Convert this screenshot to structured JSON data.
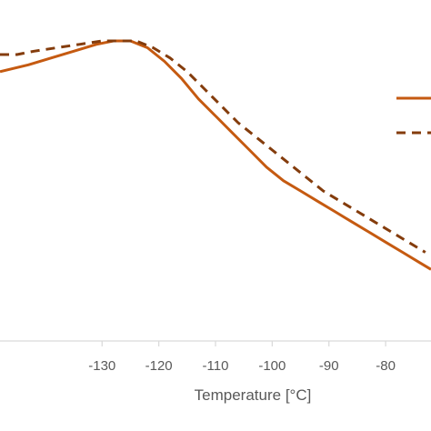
{
  "chart_data": {
    "type": "line",
    "xlabel": "Temperature [°C]",
    "ylabel": "",
    "title": "",
    "xlim": [
      -148,
      -72
    ],
    "ylim": [
      0,
      1
    ],
    "x_ticks": [
      -130,
      -120,
      -110,
      -100,
      -90,
      -80
    ],
    "grid": false,
    "legend": "right",
    "series": [
      {
        "name": "",
        "style": "solid",
        "color": "#C55A11",
        "x": [
          -148,
          -143,
          -139,
          -135,
          -131,
          -128,
          -125,
          -122,
          -119,
          -116,
          -113,
          -110,
          -107,
          -104,
          -101,
          -98,
          -95,
          -92,
          -89,
          -86,
          -83,
          -80,
          -77,
          -74,
          -72
        ],
        "y": [
          0.79,
          0.81,
          0.83,
          0.85,
          0.87,
          0.88,
          0.88,
          0.86,
          0.82,
          0.77,
          0.71,
          0.66,
          0.61,
          0.56,
          0.51,
          0.47,
          0.44,
          0.41,
          0.38,
          0.35,
          0.32,
          0.29,
          0.26,
          0.23,
          0.21
        ]
      },
      {
        "name": "",
        "style": "dashed",
        "color": "#843C0C",
        "x": [
          -148,
          -145,
          -142,
          -138,
          -134,
          -130,
          -127,
          -124,
          -121,
          -118,
          -115,
          -112,
          -109,
          -106,
          -103,
          -100,
          -97,
          -94,
          -91,
          -88,
          -85,
          -82,
          -79,
          -76,
          -73
        ],
        "y": [
          0.84,
          0.84,
          0.85,
          0.86,
          0.87,
          0.88,
          0.88,
          0.88,
          0.86,
          0.83,
          0.79,
          0.74,
          0.69,
          0.64,
          0.6,
          0.56,
          0.52,
          0.48,
          0.44,
          0.41,
          0.38,
          0.35,
          0.32,
          0.29,
          0.26
        ]
      }
    ]
  }
}
